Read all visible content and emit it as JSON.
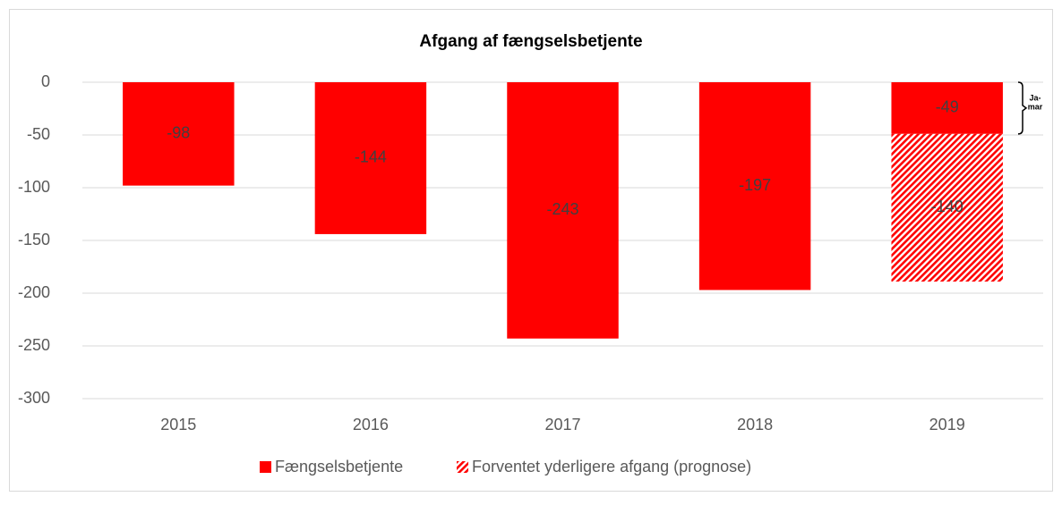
{
  "chart_data": {
    "type": "bar",
    "stacked": true,
    "title": "Afgang af fængselsbetjente",
    "categories": [
      "2015",
      "2016",
      "2017",
      "2018",
      "2019"
    ],
    "series": [
      {
        "name": "Fængselsbetjente",
        "color": "#ff0000",
        "values": [
          -98,
          -144,
          -243,
          -197,
          -49
        ]
      },
      {
        "name": "Forventet yderligere afgang (prognose)",
        "color": "#ff0000",
        "pattern": "hatch",
        "values": [
          null,
          null,
          null,
          null,
          -140
        ]
      }
    ],
    "annotation": [
      "Ja-",
      "mar"
    ],
    "ylim": [
      -300,
      0
    ],
    "yticks": [
      0,
      -50,
      -100,
      -150,
      -200,
      -250,
      -300
    ],
    "grid": true,
    "legend": "bottom"
  }
}
